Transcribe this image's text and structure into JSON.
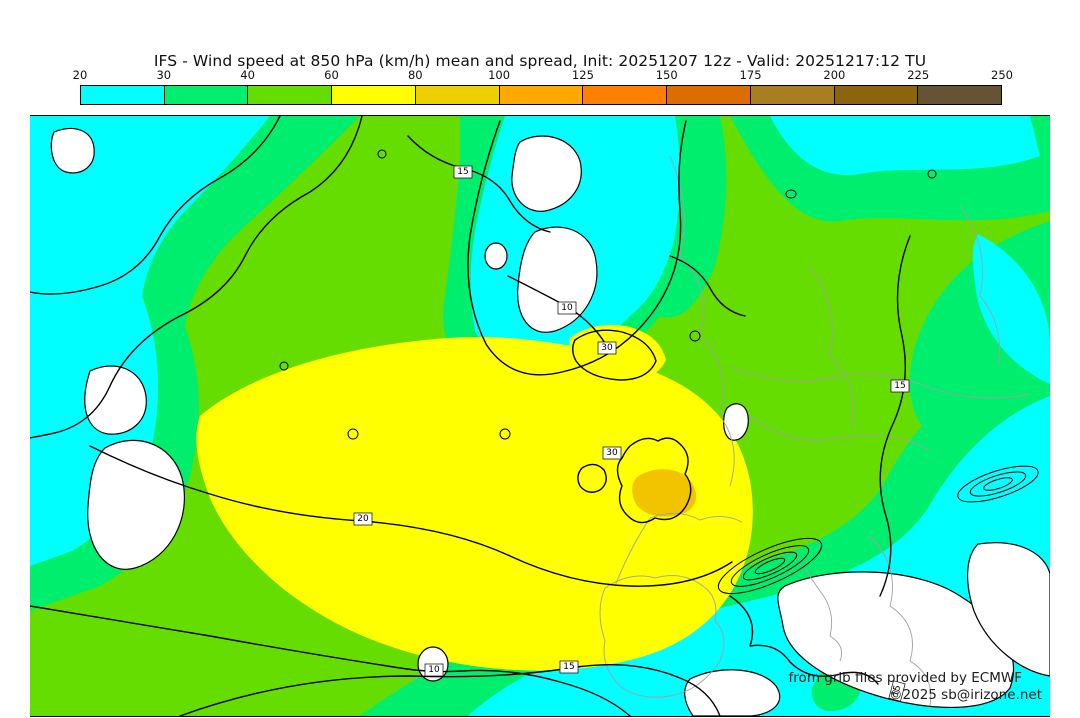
{
  "header": {
    "title": "IFS - Wind speed at 850 hPa (km/h) mean and spread, Init: 20251207 12z - Valid: 20251217:12 TU"
  },
  "colorbar": {
    "tick_labels": [
      "20",
      "30",
      "40",
      "60",
      "80",
      "100",
      "125",
      "150",
      "175",
      "200",
      "225",
      "250"
    ],
    "segment_colors": [
      "#00ffff",
      "#00ee6e",
      "#66dd00",
      "#ffff00",
      "#eed000",
      "#ffa800",
      "#ff7f00",
      "#dc6e00",
      "#a87e1e",
      "#8a650d",
      "#655434"
    ],
    "units": "km/h"
  },
  "map": {
    "colors": {
      "calm": "#ffffff",
      "c20": "#00ffff",
      "c30": "#00ee6e",
      "c40": "#66dd00",
      "c60": "#ffff00",
      "c80": "#f2c400",
      "contour": "#000000",
      "coastline": "#a0a0a0"
    },
    "contour_labels": [
      {
        "value": "15"
      },
      {
        "value": "10"
      },
      {
        "value": "30"
      },
      {
        "value": "15"
      },
      {
        "value": "30"
      },
      {
        "value": "20"
      },
      {
        "value": "10"
      },
      {
        "value": "15"
      },
      {
        "value": "15"
      }
    ],
    "attribution_line1": "from grib files provided by ECMWF",
    "attribution_line2": "©2025 sb@irizone.net"
  }
}
